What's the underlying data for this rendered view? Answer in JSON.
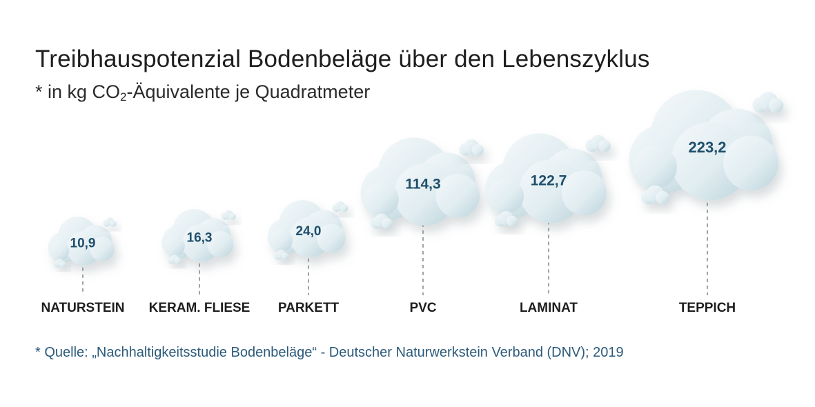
{
  "title": "Treibhauspotenzial Bodenbeläge über den Lebenszyklus",
  "subtitle_pre": "* in kg CO",
  "subtitle_sub": "2",
  "subtitle_post": "-Äquivalente je Quadratmeter",
  "source": "* Quelle: „Nachhaltigkeitsstudie Bodenbeläge“ - Deutscher Naturwerkstein Verband (DNV); 2019",
  "colors": {
    "cloud_light": "#f2f7f9",
    "cloud_dark": "#c3d9e1",
    "value_text": "#1f4e6b",
    "connector": "#8c8c8c"
  },
  "chart_data": {
    "type": "bar",
    "title": "Treibhauspotenzial Bodenbeläge über den Lebenszyklus",
    "subtitle": "* in kg CO2-Äquivalente je Quadratmeter",
    "categories": [
      "NATURSTEIN",
      "KERAM. FLIESE",
      "PARKETT",
      "PVC",
      "LAMINAT",
      "TEPPICH"
    ],
    "values": [
      10.9,
      16.3,
      24.0,
      114.3,
      122.7,
      223.2
    ],
    "value_labels": [
      "10,9",
      "16,3",
      "24,0",
      "114,3",
      "122,7",
      "223,2"
    ],
    "xlabel": "",
    "ylabel": "",
    "legend": "none",
    "grid": false
  }
}
